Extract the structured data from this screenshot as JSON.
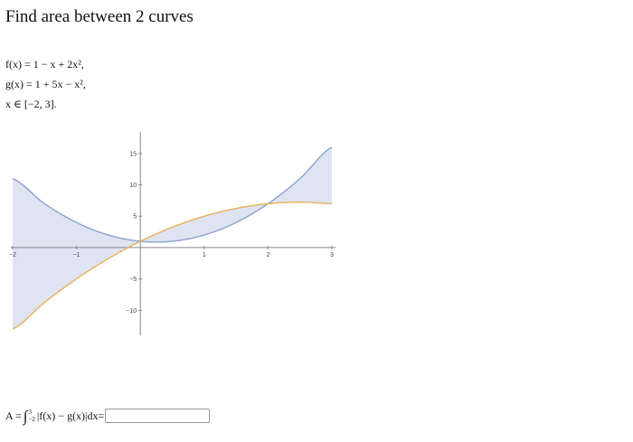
{
  "title": "Find area between 2 curves",
  "definitions": {
    "f": "f(x) = 1 − x + 2x²,",
    "g": "g(x) = 1 + 5x − x²,",
    "domain": "x ∈ [−2, 3]."
  },
  "answer": {
    "lhs": "A = ",
    "integral_symbol": "∫",
    "upper_limit": "3",
    "lower_limit": "−2",
    "integrand": "|f(x) − g(x)|dx",
    "equals": "=",
    "input_value": "",
    "input_placeholder": ""
  },
  "chart_data": {
    "type": "line",
    "x_range": [
      -2,
      3
    ],
    "y_range": [
      -14,
      17
    ],
    "x_ticks": [
      -2,
      -1,
      1,
      2,
      3
    ],
    "y_ticks": [
      15,
      10,
      5,
      -5,
      -10
    ],
    "grid": false,
    "series": [
      {
        "name": "f(x) = 1 − x + 2x²",
        "color": "#8ba3ce",
        "x": [
          -2,
          -1.5,
          -1,
          -0.5,
          0,
          0.5,
          1,
          1.5,
          2,
          2.5,
          3
        ],
        "y": [
          11,
          7,
          4,
          2,
          1,
          1,
          2,
          4,
          7,
          11,
          16
        ]
      },
      {
        "name": "g(x) = 1 + 5x − x²",
        "color": "#e8b15a",
        "x": [
          -2,
          -1.5,
          -1,
          -0.5,
          0,
          0.5,
          1,
          1.5,
          2,
          2.5,
          3
        ],
        "y": [
          -13,
          -8.75,
          -5,
          -1.75,
          1,
          3.25,
          5,
          6.25,
          7,
          7.25,
          7
        ]
      }
    ],
    "fill_between": {
      "color": "#dfe4f3"
    }
  }
}
